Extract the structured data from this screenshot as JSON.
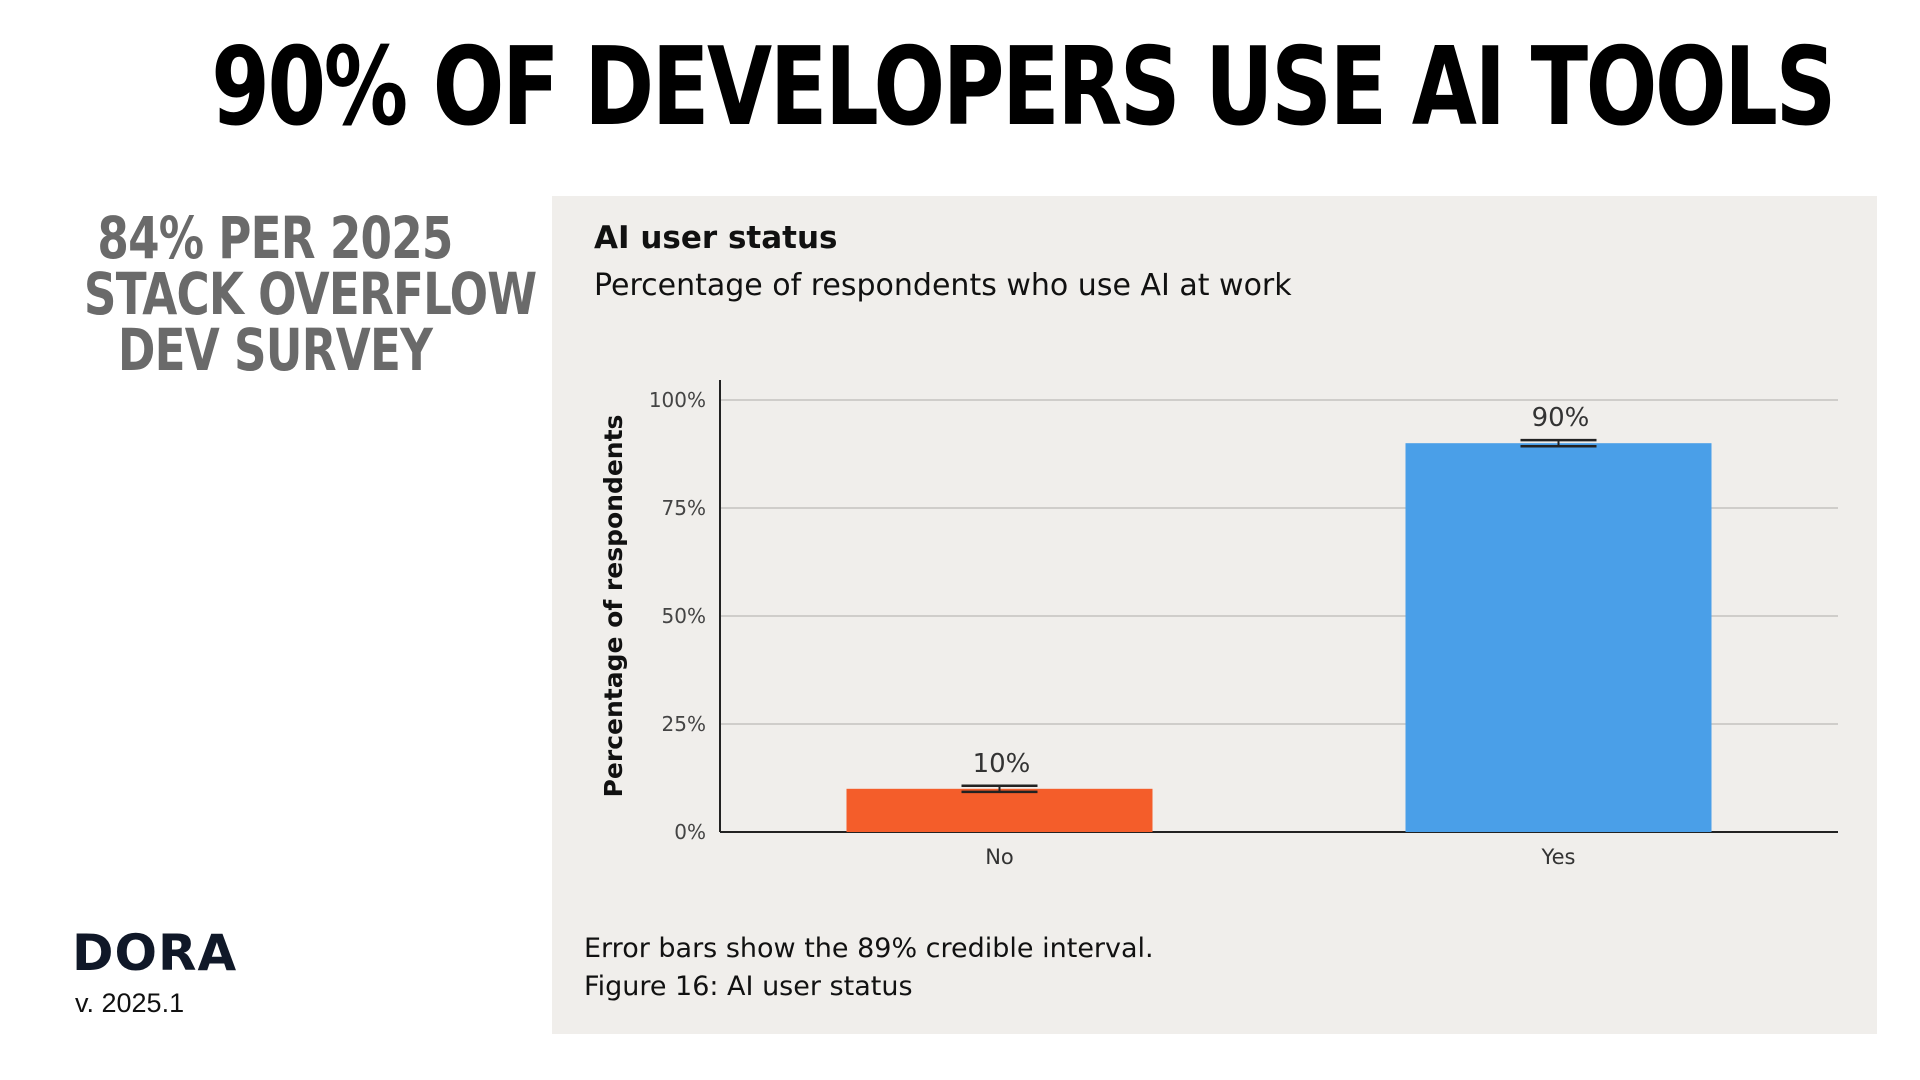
{
  "headline": "90% OF DEVELOPERS USE AI TOOLS",
  "side_note": [
    "84% PER 2025",
    "STACK OVERFLOW",
    "DEV SURVEY"
  ],
  "brand": {
    "logo": "DORA",
    "version": "v. 2025.1"
  },
  "colors": {
    "no_bar": "#f45d2a",
    "yes_bar": "#4a9fe8",
    "panel_bg": "#f0eeeb",
    "side_note": "#6a6a6a"
  },
  "chart_data": {
    "type": "bar",
    "title": "AI user status",
    "subtitle": "Percentage of respondents who use AI at work",
    "ylabel": "Percentage of respondents",
    "xlabel": "",
    "categories": [
      "No",
      "Yes"
    ],
    "values": [
      10,
      90
    ],
    "data_labels": [
      "10%",
      "90%"
    ],
    "error_bars": [
      [
        9.3,
        10.7
      ],
      [
        89.3,
        90.7
      ]
    ],
    "ylim": [
      0,
      100
    ],
    "yticks": [
      0,
      25,
      50,
      75,
      100
    ],
    "ytick_labels": [
      "0%",
      "25%",
      "50%",
      "75%",
      "100%"
    ],
    "grid": true,
    "footnotes": [
      "Error bars show the 89% credible interval.",
      "Figure 16: AI user status"
    ]
  }
}
